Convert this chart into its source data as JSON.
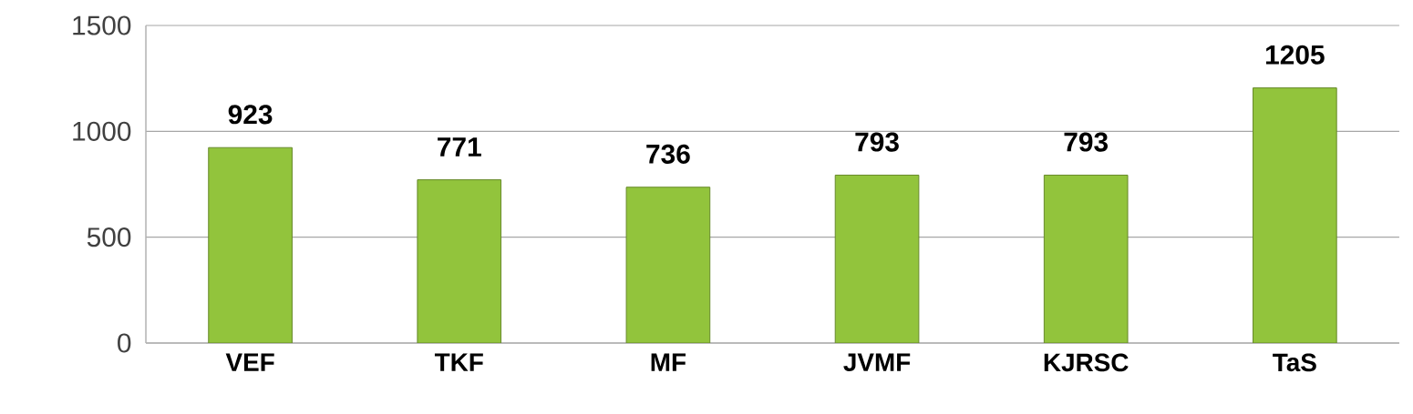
{
  "chart_data": {
    "type": "bar",
    "categories": [
      "VEF",
      "TKF",
      "MF",
      "JVMF",
      "KJRSC",
      "TaS"
    ],
    "values": [
      923,
      771,
      736,
      793,
      793,
      1205
    ],
    "color": "#92c43c",
    "ylim": [
      0,
      1500
    ],
    "yticks": [
      0,
      500,
      1000,
      1500
    ],
    "grid": "y",
    "data_labels": true
  }
}
